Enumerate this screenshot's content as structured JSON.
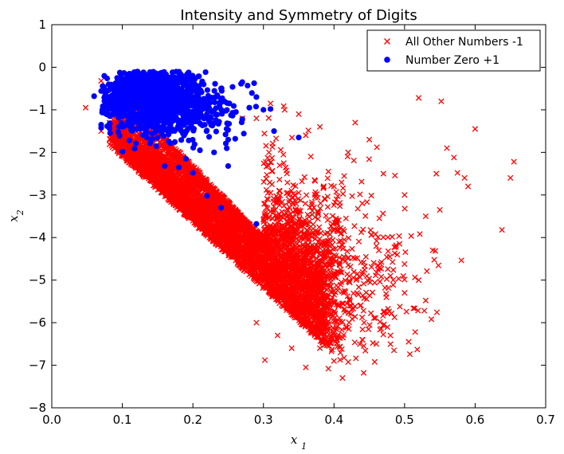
{
  "chart_data": {
    "type": "scatter",
    "title": "Intensity and Symmetry of Digits",
    "xlabel": "x1",
    "ylabel": "x2",
    "xlim": [
      0.0,
      0.7
    ],
    "ylim": [
      -8,
      1
    ],
    "x_ticks": [
      0.0,
      0.1,
      0.2,
      0.3,
      0.4,
      0.5,
      0.6,
      0.7
    ],
    "x_tick_labels": [
      "0.0",
      "0.1",
      "0.2",
      "0.3",
      "0.4",
      "0.5",
      "0.6",
      "0.7"
    ],
    "y_ticks": [
      1,
      0,
      -1,
      -2,
      -3,
      -4,
      -5,
      -6,
      -7,
      -8
    ],
    "y_tick_labels": [
      "1",
      "0",
      "−1",
      "−2",
      "−3",
      "−4",
      "−5",
      "−6",
      "−7",
      "−8"
    ],
    "grid": false,
    "legend_position": "top-right",
    "series": [
      {
        "name": "All Other Numbers -1",
        "marker": "x",
        "color": "#ff0000",
        "approx_count": 6000,
        "cluster_shape": "dense diagonal band from about (0.08,-1.6) to (0.42,-7.3), densest near x 0.15-0.32, y -2.5 to -5.5",
        "points": [
          [
            0.048,
            -0.95
          ],
          [
            0.07,
            -0.32
          ],
          [
            0.07,
            -1.5
          ],
          [
            0.52,
            -0.72
          ],
          [
            0.552,
            -0.8
          ],
          [
            0.6,
            -1.45
          ],
          [
            0.655,
            -2.22
          ],
          [
            0.65,
            -2.6
          ],
          [
            0.638,
            -3.82
          ],
          [
            0.57,
            -2.12
          ],
          [
            0.575,
            -2.48
          ],
          [
            0.585,
            -2.6
          ],
          [
            0.59,
            -2.8
          ],
          [
            0.56,
            -1.9
          ],
          [
            0.545,
            -2.5
          ],
          [
            0.53,
            -5.48
          ],
          [
            0.528,
            -5.72
          ],
          [
            0.538,
            -5.92
          ],
          [
            0.515,
            -6.22
          ],
          [
            0.518,
            -6.63
          ],
          [
            0.485,
            -6.65
          ],
          [
            0.442,
            -7.18
          ],
          [
            0.412,
            -7.3
          ],
          [
            0.392,
            -7.08
          ],
          [
            0.36,
            -7.05
          ],
          [
            0.302,
            -6.88
          ],
          [
            0.44,
            -6.4
          ],
          [
            0.46,
            -6.5
          ],
          [
            0.48,
            -6.3
          ],
          [
            0.54,
            -4.3
          ],
          [
            0.55,
            -3.35
          ],
          [
            0.53,
            -3.5
          ],
          [
            0.5,
            -3.0
          ],
          [
            0.47,
            -2.5
          ],
          [
            0.45,
            -1.7
          ],
          [
            0.43,
            -1.3
          ],
          [
            0.31,
            -0.85
          ],
          [
            0.33,
            -1.0
          ],
          [
            0.35,
            -1.1
          ],
          [
            0.38,
            -1.4
          ],
          [
            0.27,
            -1.2
          ],
          [
            0.25,
            -1.4
          ],
          [
            0.29,
            -1.2
          ],
          [
            0.36,
            -1.6
          ],
          [
            0.42,
            -2.0
          ],
          [
            0.44,
            -3.2
          ],
          [
            0.46,
            -4.2
          ],
          [
            0.48,
            -4.9
          ],
          [
            0.5,
            -5.3
          ],
          [
            0.52,
            -5.0
          ],
          [
            0.4,
            -6.9
          ],
          [
            0.38,
            -6.6
          ],
          [
            0.34,
            -6.6
          ],
          [
            0.32,
            -6.3
          ],
          [
            0.29,
            -6.0
          ]
        ]
      },
      {
        "name": "Number Zero +1",
        "marker": "o",
        "color": "#0000ff",
        "approx_count": 1500,
        "cluster_shape": "dense blob centered near (0.13,-0.7) spanning x 0.06-0.32, y -0.1 to -2.4",
        "points": [
          [
            0.06,
            -0.68
          ],
          [
            0.07,
            -1.35
          ],
          [
            0.07,
            -1.42
          ],
          [
            0.16,
            -2.32
          ],
          [
            0.18,
            -2.35
          ],
          [
            0.2,
            -2.48
          ],
          [
            0.22,
            -3.02
          ],
          [
            0.24,
            -3.3
          ],
          [
            0.25,
            -2.32
          ],
          [
            0.29,
            -3.68
          ],
          [
            0.31,
            -0.98
          ],
          [
            0.315,
            -1.5
          ],
          [
            0.35,
            -1.65
          ],
          [
            0.3,
            -1.0
          ],
          [
            0.28,
            -0.95
          ],
          [
            0.27,
            -1.22
          ],
          [
            0.25,
            -1.7
          ],
          [
            0.26,
            -1.68
          ],
          [
            0.23,
            -2.0
          ],
          [
            0.21,
            -1.95
          ],
          [
            0.19,
            -2.15
          ],
          [
            0.14,
            -1.75
          ],
          [
            0.11,
            -1.72
          ],
          [
            0.1,
            -1.4
          ],
          [
            0.09,
            -1.0
          ],
          [
            0.1,
            -0.5
          ],
          [
            0.13,
            -0.12
          ],
          [
            0.17,
            -0.3
          ],
          [
            0.2,
            -0.45
          ],
          [
            0.24,
            -0.5
          ],
          [
            0.27,
            -0.35
          ],
          [
            0.29,
            -0.7
          ],
          [
            0.08,
            -0.9
          ],
          [
            0.09,
            -0.7
          ],
          [
            0.12,
            -1.2
          ],
          [
            0.15,
            -1.0
          ],
          [
            0.18,
            -0.8
          ],
          [
            0.21,
            -1.1
          ],
          [
            0.17,
            -1.5
          ],
          [
            0.14,
            -0.6
          ]
        ]
      }
    ]
  }
}
